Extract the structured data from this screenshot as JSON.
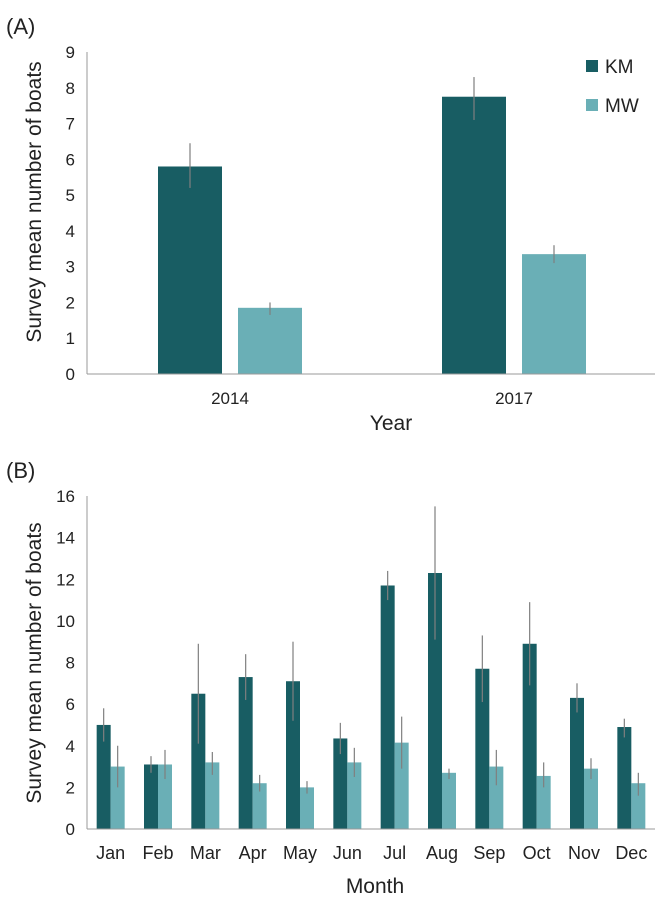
{
  "colors": {
    "KM": "#185d63",
    "MW": "#6aafb6",
    "error": "#7f7f7f",
    "axis": "#999999"
  },
  "chart_data": [
    {
      "panel_label": "(A)",
      "type": "bar",
      "xlabel": "Year",
      "ylabel": "Survey mean number of boats",
      "ylim": [
        0,
        9
      ],
      "yticks": [
        "0",
        "1",
        "2",
        "3",
        "4",
        "5",
        "6",
        "7",
        "8",
        "9"
      ],
      "legend_position": "top-right",
      "categories": [
        "2014",
        "2017"
      ],
      "series": [
        {
          "name": "KM",
          "values": [
            5.8,
            7.75
          ],
          "error_low": [
            5.2,
            7.1
          ],
          "error_high": [
            6.45,
            8.3
          ]
        },
        {
          "name": "MW",
          "values": [
            1.85,
            3.35
          ],
          "error_low": [
            1.65,
            3.1
          ],
          "error_high": [
            2.0,
            3.6
          ]
        }
      ]
    },
    {
      "panel_label": "(B)",
      "type": "bar",
      "xlabel": "Month",
      "ylabel": "Survey mean number of boats",
      "ylim": [
        0,
        16
      ],
      "yticks": [
        "0",
        "2",
        "4",
        "6",
        "8",
        "10",
        "12",
        "14",
        "16"
      ],
      "categories": [
        "Jan",
        "Feb",
        "Mar",
        "Apr",
        "May",
        "Jun",
        "Jul",
        "Aug",
        "Sep",
        "Oct",
        "Nov",
        "Dec"
      ],
      "series": [
        {
          "name": "KM",
          "values": [
            5.0,
            3.1,
            6.5,
            7.3,
            7.1,
            4.35,
            11.7,
            12.3,
            7.7,
            8.9,
            6.3,
            4.9
          ],
          "error_low": [
            4.2,
            2.7,
            4.1,
            6.2,
            5.2,
            3.6,
            11.0,
            9.1,
            6.1,
            6.9,
            5.6,
            4.4
          ],
          "error_high": [
            5.8,
            3.5,
            8.9,
            8.4,
            9.0,
            5.1,
            12.4,
            15.5,
            9.3,
            10.9,
            7.0,
            5.3
          ]
        },
        {
          "name": "MW",
          "values": [
            3.0,
            3.1,
            3.2,
            2.2,
            2.0,
            3.2,
            4.15,
            2.7,
            3.0,
            2.55,
            2.9,
            2.2
          ],
          "error_low": [
            2.0,
            2.4,
            2.6,
            1.8,
            1.7,
            2.5,
            2.9,
            2.4,
            2.1,
            2.0,
            2.4,
            1.6
          ],
          "error_high": [
            4.0,
            3.8,
            3.7,
            2.6,
            2.3,
            3.9,
            5.4,
            2.9,
            3.8,
            3.2,
            3.4,
            2.7
          ]
        }
      ]
    }
  ]
}
